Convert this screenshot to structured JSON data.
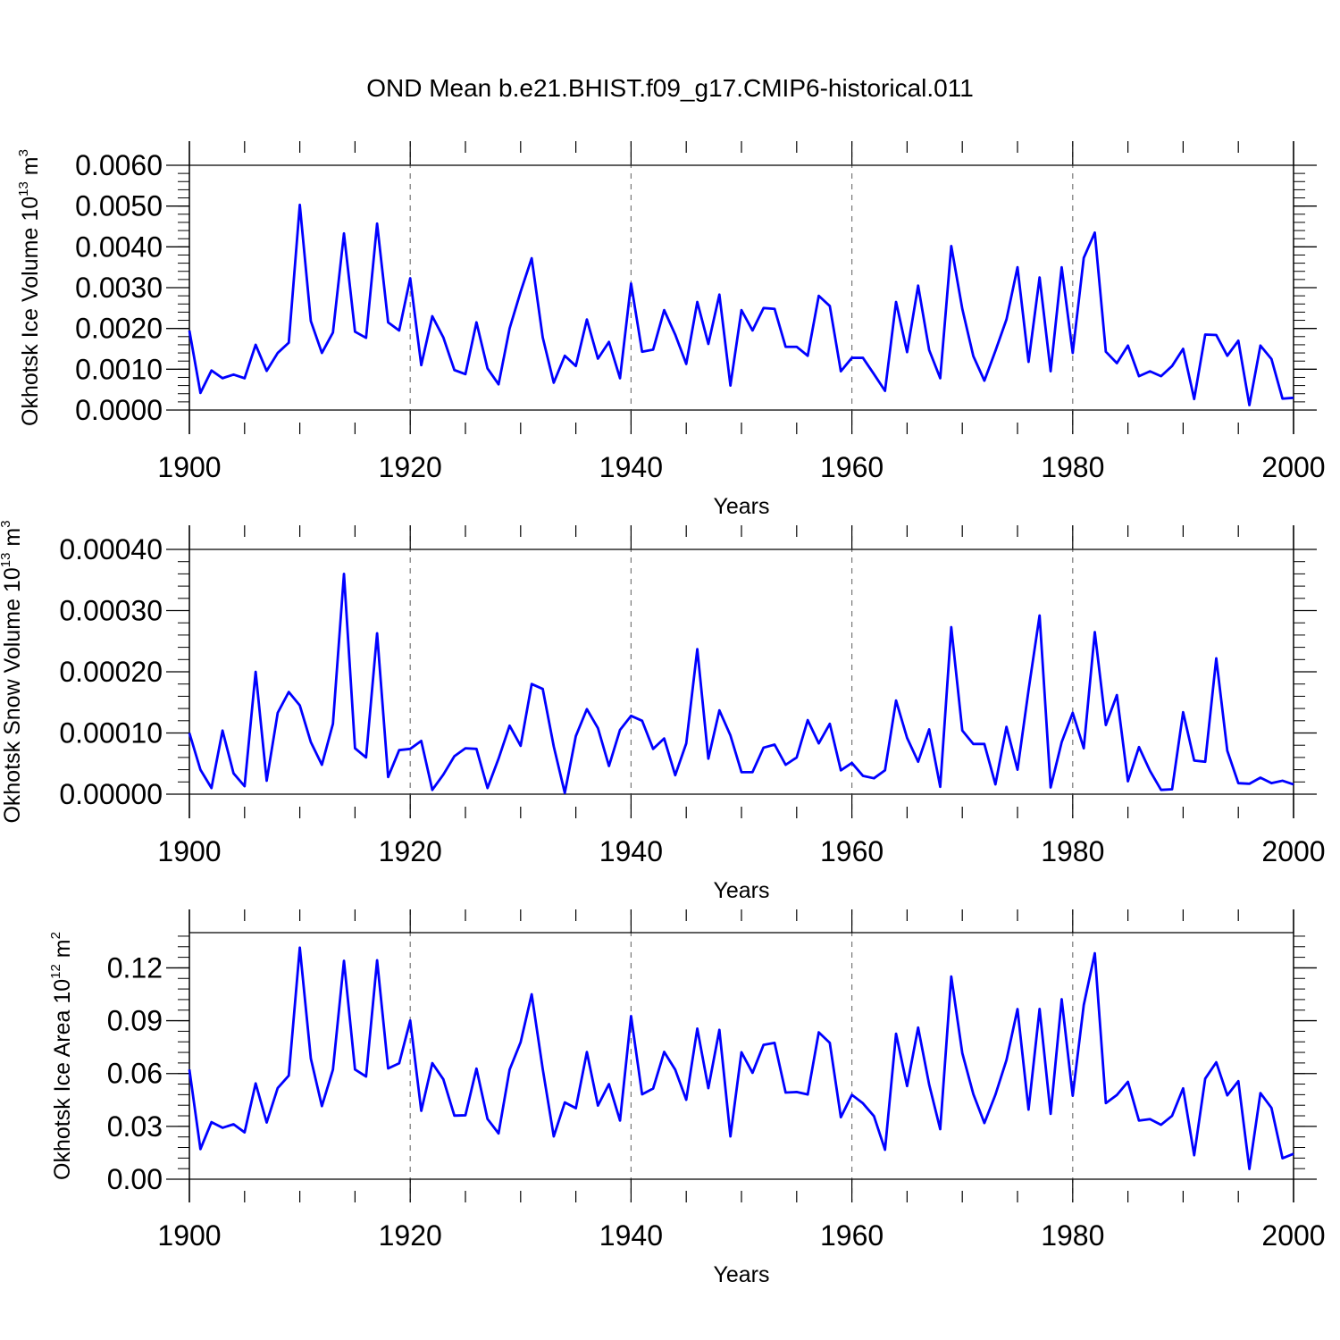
{
  "title": "OND Mean b.e21.BHIST.f09_g17.CMIP6-historical.011",
  "colors": {
    "series": "#0000ff",
    "axis": "#000000",
    "grid": "#777777"
  },
  "chart_data": [
    {
      "type": "line",
      "ylabel": {
        "base": "Okhotsk Ice Volume 10",
        "exp": "13",
        "unit": " m",
        "unit_exp": "3"
      },
      "xlabel": "Years",
      "xlim": [
        1900,
        2000
      ],
      "ylim": [
        0,
        0.006
      ],
      "yticks": [
        0.0,
        0.001,
        0.002,
        0.003,
        0.004,
        0.005,
        0.006
      ],
      "ytick_labels": [
        "0.0000",
        "0.0010",
        "0.0020",
        "0.0030",
        "0.0040",
        "0.0050",
        "0.0060"
      ],
      "yminor": 0.0002,
      "grid_x": [
        1920,
        1940,
        1960,
        1980
      ],
      "series": [
        {
          "name": "Okhotsk Ice Volume",
          "x_start": 1900,
          "values": [
            0.00195,
            0.00042,
            0.00097,
            0.00078,
            0.00087,
            0.00078,
            0.0016,
            0.00096,
            0.0014,
            0.00165,
            0.00503,
            0.00218,
            0.0014,
            0.0019,
            0.00433,
            0.00192,
            0.00177,
            0.00457,
            0.00215,
            0.00195,
            0.00323,
            0.0011,
            0.0023,
            0.00178,
            0.00098,
            0.00088,
            0.00215,
            0.00102,
            0.00063,
            0.002,
            0.0029,
            0.00372,
            0.00178,
            0.00067,
            0.00133,
            0.00108,
            0.00222,
            0.00126,
            0.00167,
            0.00078,
            0.0031,
            0.00143,
            0.00148,
            0.00245,
            0.00185,
            0.00113,
            0.00265,
            0.00162,
            0.00283,
            0.0006,
            0.00245,
            0.00195,
            0.0025,
            0.00248,
            0.00155,
            0.00155,
            0.00133,
            0.0028,
            0.00255,
            0.00095,
            0.00128,
            0.00128,
            0.00088,
            0.00047,
            0.00265,
            0.00142,
            0.00305,
            0.00147,
            0.00078,
            0.00402,
            0.00248,
            0.00132,
            0.00072,
            0.00145,
            0.00222,
            0.0035,
            0.00118,
            0.00325,
            0.00095,
            0.0035,
            0.0014,
            0.00373,
            0.00435,
            0.00143,
            0.00115,
            0.00158,
            0.00083,
            0.00095,
            0.00083,
            0.00108,
            0.0015,
            0.00027,
            0.00185,
            0.00184,
            0.00133,
            0.0017,
            0.00012,
            0.00158,
            0.00125,
            0.00028,
            0.0003
          ]
        }
      ]
    },
    {
      "type": "line",
      "ylabel": {
        "base": "Okhotsk Snow Volume 10",
        "exp": "13",
        "unit": " m",
        "unit_exp": "3"
      },
      "xlabel": "Years",
      "xlim": [
        1900,
        2000
      ],
      "ylim": [
        0,
        0.0004
      ],
      "yticks": [
        0.0,
        0.0001,
        0.0002,
        0.0003,
        0.0004
      ],
      "ytick_labels": [
        "0.00000",
        "0.00010",
        "0.00020",
        "0.00030",
        "0.00040"
      ],
      "yminor": 2e-05,
      "grid_x": [
        1920,
        1940,
        1960,
        1980
      ],
      "series": [
        {
          "name": "Okhotsk Snow Volume",
          "x_start": 1900,
          "values": [
            0.0001,
            4e-05,
            1e-05,
            0.000104,
            3.4e-05,
            1.3e-05,
            0.0002,
            2.2e-05,
            0.000133,
            0.000167,
            0.000145,
            8.5e-05,
            4.8e-05,
            0.000115,
            0.00036,
            7.5e-05,
            6e-05,
            0.000263,
            2.8e-05,
            7.2e-05,
            7.4e-05,
            8.7e-05,
            7e-06,
            3.2e-05,
            6.2e-05,
            7.5e-05,
            7.4e-05,
            1e-05,
            5.8e-05,
            0.000112,
            7.9e-05,
            0.00018,
            0.000172,
            7.8e-05,
            2e-06,
            9.5e-05,
            0.000139,
            0.000108,
            4.6e-05,
            0.000105,
            0.000128,
            0.00012,
            7.4e-05,
            9.1e-05,
            3.1e-05,
            8.3e-05,
            0.000237,
            5.8e-05,
            0.000137,
            9.6e-05,
            3.6e-05,
            3.6e-05,
            7.6e-05,
            8.1e-05,
            4.8e-05,
            6e-05,
            0.000121,
            8.3e-05,
            0.000115,
            3.9e-05,
            5.1e-05,
            3e-05,
            2.6e-05,
            3.9e-05,
            0.000153,
            9.2e-05,
            5.3e-05,
            0.000106,
            1.2e-05,
            0.000273,
            0.000104,
            8.2e-05,
            8.2e-05,
            1.6e-05,
            0.00011,
            4e-05,
            0.00017,
            0.000292,
            1.1e-05,
            8.5e-05,
            0.000133,
            7.5e-05,
            0.000265,
            0.000113,
            0.000162,
            2.1e-05,
            7.7e-05,
            3.8e-05,
            7e-06,
            8e-06,
            0.000134,
            5.5e-05,
            5.3e-05,
            0.000222,
            7.1e-05,
            1.8e-05,
            1.7e-05,
            2.7e-05,
            1.8e-05,
            2.2e-05,
            1.6e-05
          ]
        }
      ]
    },
    {
      "type": "line",
      "ylabel": {
        "base": "Okhotsk Ice Area 10",
        "exp": "12",
        "unit": " m",
        "unit_exp": "2"
      },
      "xlabel": "Years",
      "xlim": [
        1900,
        2000
      ],
      "ylim": [
        0,
        0.14
      ],
      "yticks": [
        0.0,
        0.03,
        0.06,
        0.09,
        0.12
      ],
      "ytick_labels": [
        "0.00",
        "0.03",
        "0.06",
        "0.09",
        "0.12"
      ],
      "yminor": 0.006,
      "grid_x": [
        1920,
        1940,
        1960,
        1980
      ],
      "series": [
        {
          "name": "Okhotsk Ice Area",
          "x_start": 1900,
          "values": [
            0.0623,
            0.0171,
            0.0324,
            0.0292,
            0.0312,
            0.0266,
            0.0544,
            0.0322,
            0.0518,
            0.0588,
            0.1315,
            0.0685,
            0.0415,
            0.0622,
            0.124,
            0.0623,
            0.0583,
            0.1243,
            0.0629,
            0.0658,
            0.0901,
            0.0388,
            0.0659,
            0.0567,
            0.0361,
            0.0363,
            0.0628,
            0.0342,
            0.026,
            0.0622,
            0.0778,
            0.105,
            0.0626,
            0.0243,
            0.0436,
            0.0403,
            0.0722,
            0.0418,
            0.054,
            0.0333,
            0.0926,
            0.0482,
            0.0515,
            0.0723,
            0.0622,
            0.0451,
            0.0855,
            0.0517,
            0.0848,
            0.0243,
            0.0721,
            0.0604,
            0.0763,
            0.0774,
            0.0492,
            0.0495,
            0.0481,
            0.0834,
            0.0774,
            0.0352,
            0.0479,
            0.0431,
            0.0358,
            0.0167,
            0.0826,
            0.0529,
            0.0861,
            0.0537,
            0.0284,
            0.1151,
            0.0716,
            0.0483,
            0.0319,
            0.048,
            0.0676,
            0.0966,
            0.0395,
            0.0967,
            0.0371,
            0.1022,
            0.0474,
            0.0989,
            0.1283,
            0.0432,
            0.0478,
            0.0553,
            0.0333,
            0.0341,
            0.0309,
            0.036,
            0.0516,
            0.0136,
            0.0571,
            0.0664,
            0.0476,
            0.0557,
            0.0058,
            0.0489,
            0.0405,
            0.0119,
            0.0144
          ]
        }
      ]
    }
  ]
}
